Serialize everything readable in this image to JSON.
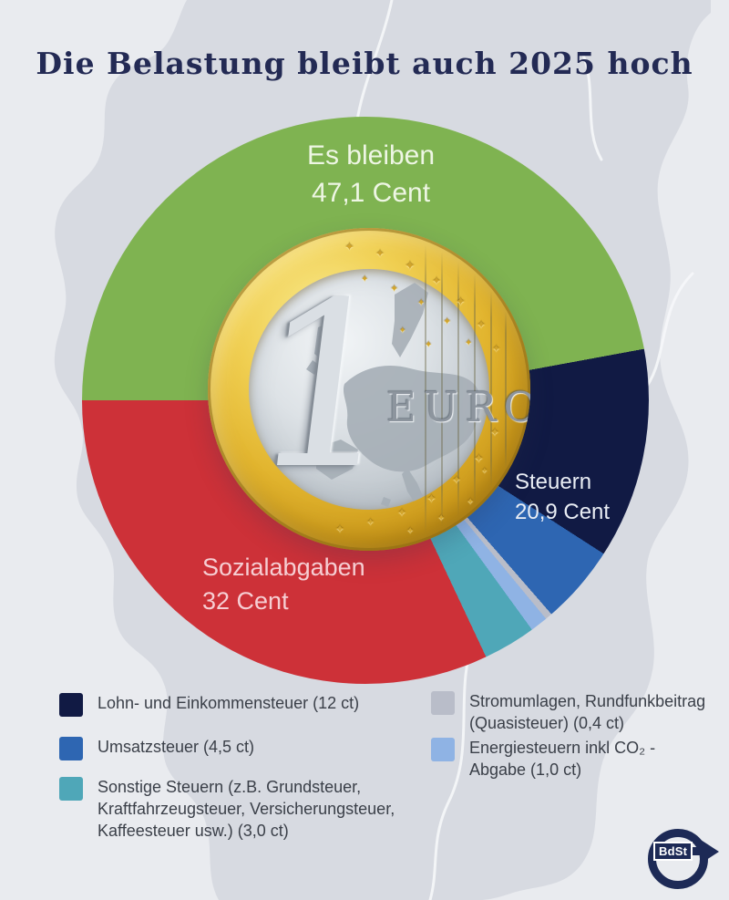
{
  "title": "Die Belastung bleibt auch 2025 hoch",
  "colors": {
    "background": "#e9ebef",
    "map_fill": "#d7dae1",
    "map_border": "#f6f7f9",
    "title_text": "#232a54",
    "legend_text": "#3a3f48"
  },
  "chart_data": {
    "type": "pie",
    "title": "Die Belastung bleibt auch 2025 hoch",
    "unit": "Cent von 1 Euro",
    "total": 100,
    "start_angle_deg": 270,
    "direction": "clockwise",
    "segments": [
      {
        "name": "Es bleiben",
        "value": 47.1,
        "color": "#7fb351"
      },
      {
        "name": "Lohn- und Einkommensteuer",
        "value": 12.0,
        "color": "#111a44"
      },
      {
        "name": "Umsatzsteuer",
        "value": 4.5,
        "color": "#2e66b2"
      },
      {
        "name": "Stromumlagen, Rundfunkbeitrag (Quasisteuer)",
        "value": 0.4,
        "color": "#b9bdc9"
      },
      {
        "name": "Energiesteuern inkl CO₂-Abgabe",
        "value": 1.0,
        "color": "#8fb3e4"
      },
      {
        "name": "Sonstige Steuern",
        "value": 3.0,
        "color": "#4fa7b8"
      },
      {
        "name": "Sozialabgaben",
        "value": 32.0,
        "color": "#cd3138"
      }
    ],
    "callouts": {
      "remainder": {
        "line1": "Es bleiben",
        "line2": "47,1 Cent",
        "text_color": "#eef6e4"
      },
      "steuern": {
        "line1": "Steuern",
        "line2": "20,9 Cent",
        "text_color": "#e9edf4"
      },
      "sozialabgaben": {
        "line1": "Sozialabgaben",
        "line2": "32 Cent",
        "text_color": "#f6ced3"
      }
    }
  },
  "coin": {
    "denomination": "1",
    "currency": "EURO"
  },
  "legend": {
    "left": [
      {
        "label": "Lohn- und Einkommensteuer (12 ct)",
        "color": "#111a44"
      },
      {
        "label": "Umsatzsteuer (4,5 ct)",
        "color": "#2e66b2"
      },
      {
        "label": "Sonstige Steuern (z.B. Grundsteuer, Kraftfahrzeugsteuer, Versicherungsteuer, Kaffeesteuer usw.) (3,0 ct)",
        "color": "#4fa7b8"
      }
    ],
    "right": [
      {
        "label": "Stromumlagen, Rundfunkbeitrag (Quasisteuer) (0,4 ct)",
        "color": "#b9bdc9"
      },
      {
        "label": "Energiesteuern inkl CO₂ -Abgabe (1,0 ct)",
        "color": "#8fb3e4"
      }
    ]
  },
  "logo": {
    "text": "BdSt"
  }
}
